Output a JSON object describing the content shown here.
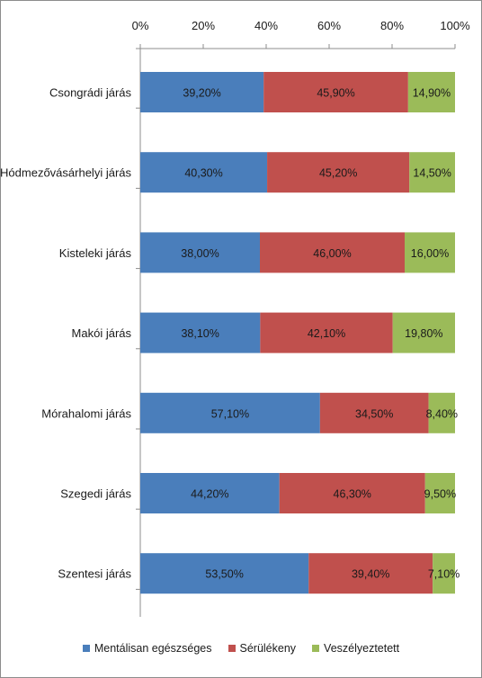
{
  "chart_data": {
    "type": "bar",
    "orientation": "horizontal",
    "stacked": "percent",
    "categories": [
      "Csongrádi járás",
      "Hódmezővásárhelyi járás",
      "Kisteleki járás",
      "Makói járás",
      "Mórahalomi járás",
      "Szegedi járás",
      "Szentesi járás"
    ],
    "series": [
      {
        "name": "Mentálisan egészséges",
        "color": "#4a7ebb",
        "values": [
          39.2,
          40.3,
          38.0,
          38.1,
          57.1,
          44.2,
          53.5
        ],
        "labels": [
          "39,20%",
          "40,30%",
          "38,00%",
          "38,10%",
          "57,10%",
          "44,20%",
          "53,50%"
        ]
      },
      {
        "name": "Sérülékeny",
        "color": "#c0504d",
        "values": [
          45.9,
          45.2,
          46.0,
          42.1,
          34.5,
          46.3,
          39.4
        ],
        "labels": [
          "45,90%",
          "45,20%",
          "46,00%",
          "42,10%",
          "34,50%",
          "46,30%",
          "39,40%"
        ]
      },
      {
        "name": "Veszélyeztetett",
        "color": "#9bbb59",
        "values": [
          14.9,
          14.5,
          16.0,
          19.8,
          8.4,
          9.5,
          7.1
        ],
        "labels": [
          "14,90%",
          "14,50%",
          "16,00%",
          "19,80%",
          "8,40%",
          "9,50%",
          "7,10%"
        ]
      }
    ],
    "x_ticks": [
      "0%",
      "20%",
      "40%",
      "60%",
      "80%",
      "100%"
    ],
    "xlim": [
      0,
      100
    ],
    "x_axis_position": "top",
    "grid": false,
    "legend_position": "bottom"
  }
}
